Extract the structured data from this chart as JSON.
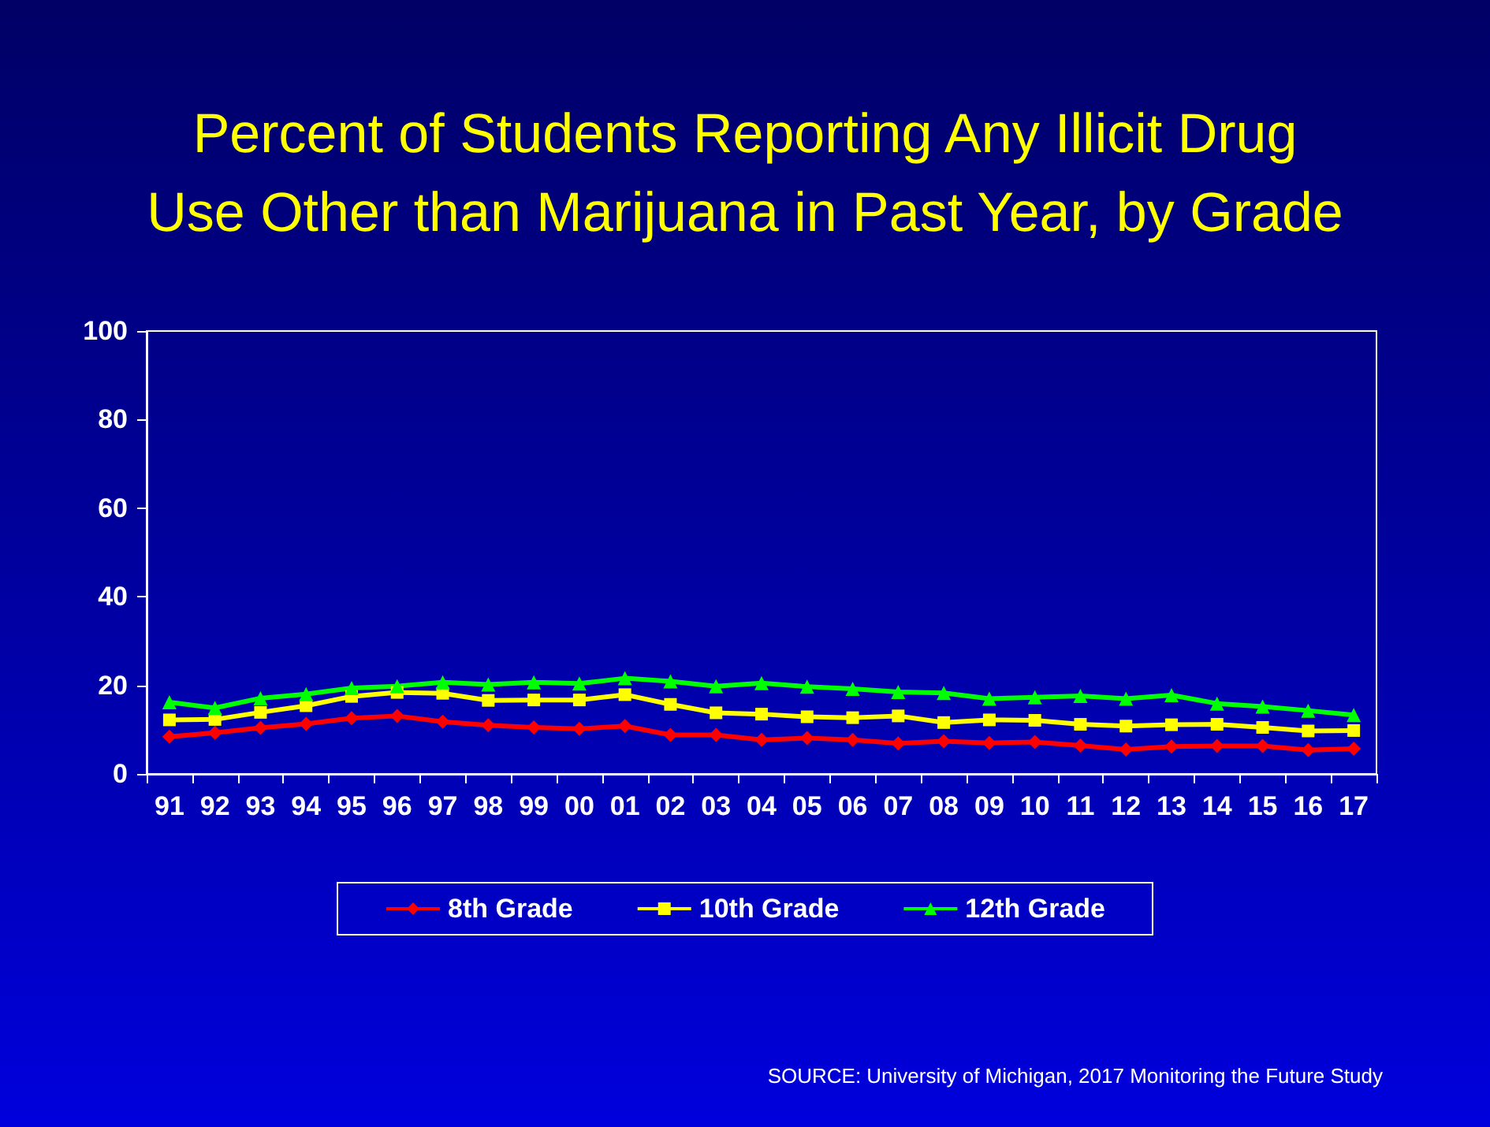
{
  "chart_data": {
    "type": "line",
    "title": "Percent of Students Reporting Any Illicit Drug\nUse Other than Marijuana in Past Year, by Grade",
    "categories": [
      "91",
      "92",
      "93",
      "94",
      "95",
      "96",
      "97",
      "98",
      "99",
      "00",
      "01",
      "02",
      "03",
      "04",
      "05",
      "06",
      "07",
      "08",
      "09",
      "10",
      "11",
      "12",
      "13",
      "14",
      "15",
      "16",
      "17"
    ],
    "series": [
      {
        "name": "8th Grade",
        "color": "#ff0000",
        "marker": "diamond",
        "values": [
          8.4,
          9.3,
          10.4,
          11.3,
          12.6,
          13.1,
          11.8,
          11.0,
          10.5,
          10.2,
          10.8,
          8.8,
          8.8,
          7.7,
          8.1,
          7.7,
          6.9,
          7.4,
          7.0,
          7.2,
          6.4,
          5.5,
          6.2,
          6.3,
          6.3,
          5.4,
          5.7
        ]
      },
      {
        "name": "10th Grade",
        "color": "#ffff00",
        "marker": "square",
        "values": [
          12.2,
          12.3,
          13.9,
          15.4,
          17.5,
          18.4,
          18.2,
          16.6,
          16.7,
          16.7,
          17.9,
          15.7,
          13.8,
          13.5,
          12.9,
          12.7,
          13.1,
          11.6,
          12.2,
          12.1,
          11.2,
          10.8,
          11.1,
          11.2,
          10.5,
          9.7,
          9.8
        ]
      },
      {
        "name": "12th Grade",
        "color": "#00ff00",
        "marker": "triangle",
        "values": [
          16.2,
          14.9,
          17.1,
          18.0,
          19.4,
          19.8,
          20.7,
          20.2,
          20.7,
          20.4,
          21.6,
          20.9,
          19.8,
          20.5,
          19.7,
          19.2,
          18.5,
          18.3,
          17.0,
          17.3,
          17.6,
          17.0,
          17.8,
          15.9,
          15.2,
          14.3,
          13.3
        ]
      }
    ],
    "ylim": [
      0,
      100
    ],
    "yticks": [
      0,
      20,
      40,
      60,
      80,
      100
    ],
    "grid": false,
    "legend": "bottom",
    "annotations": [
      "SOURCE: University of Michigan, 2017 Monitoring the Future Study"
    ]
  }
}
